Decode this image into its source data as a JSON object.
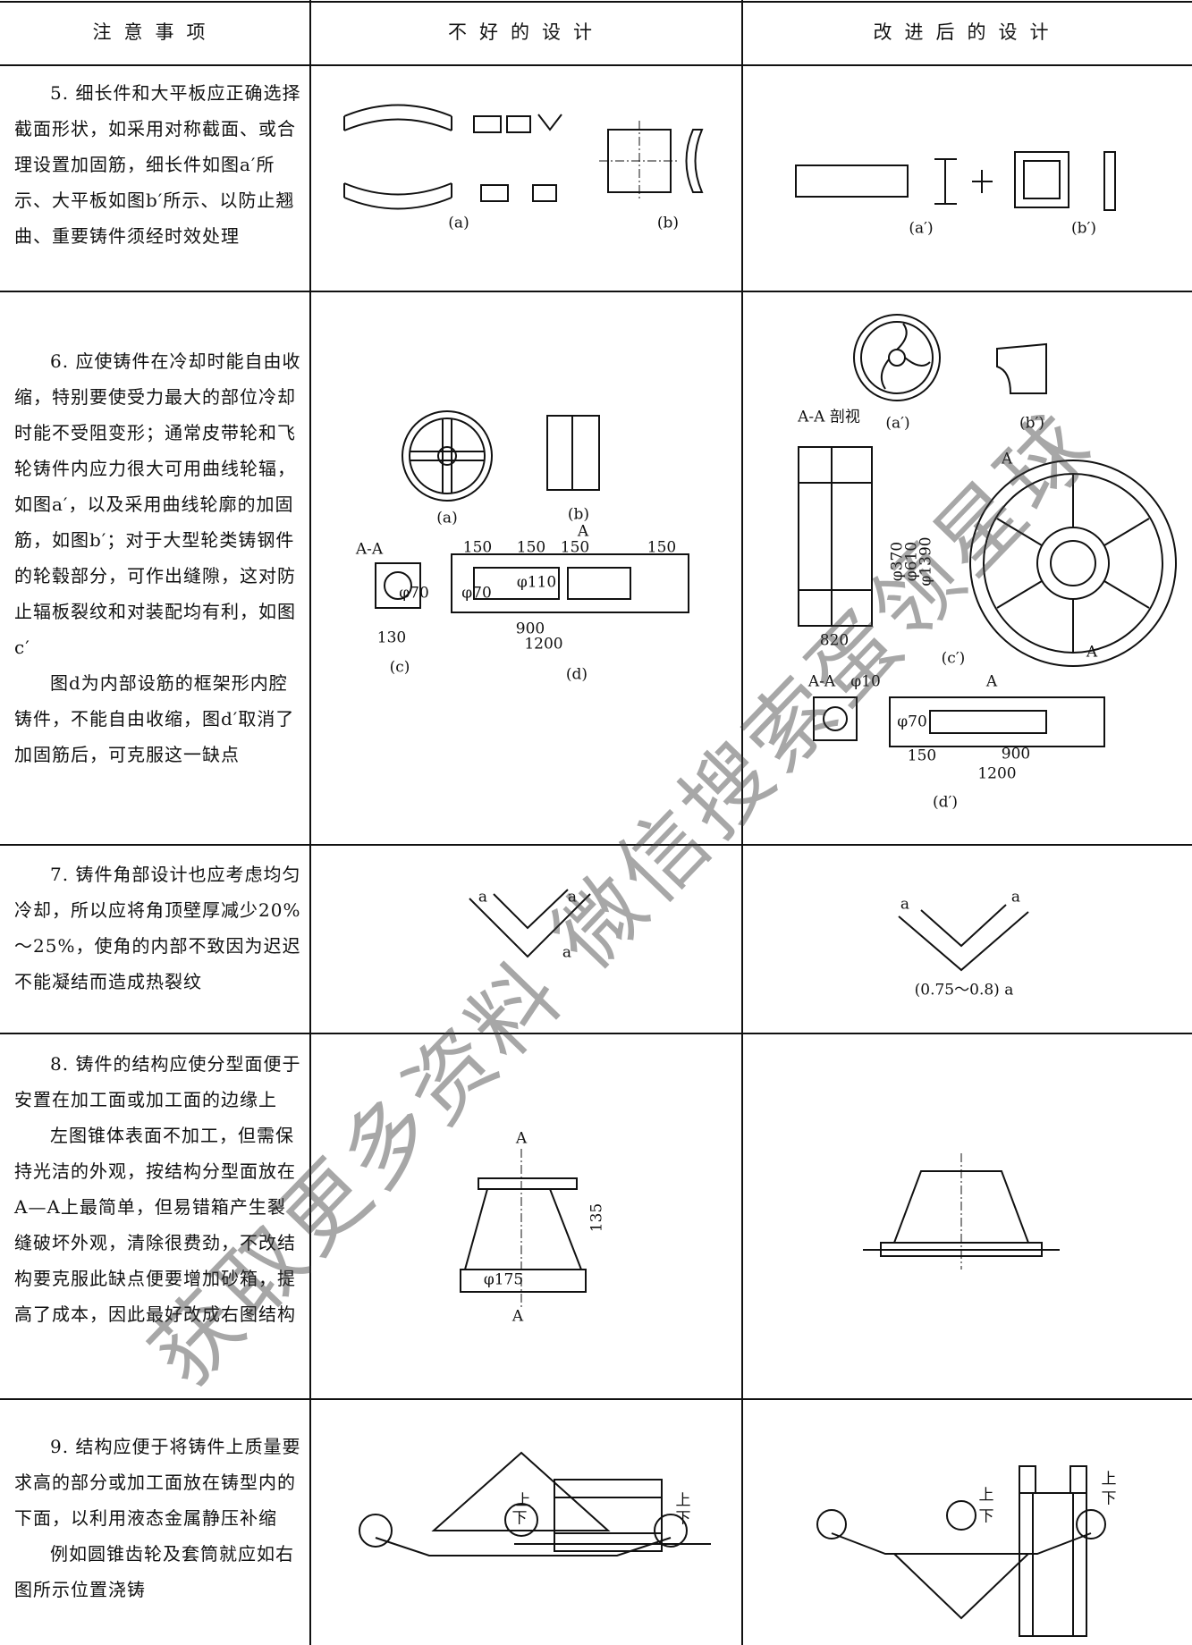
{
  "header": {
    "columns": [
      "注意事项",
      "不好的设计",
      "改进后的设计"
    ]
  },
  "rows": [
    {
      "note": [
        "5. 细长件和大平板应正确选择截面形状，如采用对称截面、或合理设置加固筋，细长件如图a′所示、大平板如图b′所示、以防止翘曲、重要铸件须经时效处理"
      ],
      "bad": [
        "(a)",
        "(b)"
      ],
      "good": [
        "(a′)",
        "(b′)"
      ]
    },
    {
      "note": [
        "6. 应使铸件在冷却时能自由收缩，特别要使受力最大的部位冷却时能不受阻变形；通常皮带轮和飞轮铸件内应力很大可用曲线轮辐，如图a′，以及采用曲线轮廓的加固筋，如图b′；对于大型轮类铸钢件的轮毂部分，可作出缝隙，这对防止辐板裂纹和对装配均有利，如图c′",
        "图d为内部设筋的框架形内腔铸件，不能自由收缩，图d′取消了加固筋后，可克服这一缺点"
      ],
      "bad": [
        "(a)",
        "(b)",
        "A-A",
        "150",
        "150",
        "150",
        "150",
        "A",
        "φ70",
        "φ70",
        "φ110",
        "900",
        "1200",
        "130",
        "(c)",
        "(d)"
      ],
      "good": [
        "(a′)",
        "(b′)",
        "A-A 剖视",
        "820",
        "φ370",
        "φ610",
        "φ1390",
        "(c′)",
        "A",
        "A",
        "A-A",
        "φ10",
        "A",
        "φ70",
        "150",
        "900",
        "1200",
        "(d′)"
      ]
    },
    {
      "note": [
        "7. 铸件角部设计也应考虑均匀冷却，所以应将角顶壁厚减少20%～25%，使角的内部不致因为迟迟不能凝结而造成热裂纹"
      ],
      "bad": [
        "a",
        "a",
        "a"
      ],
      "good": [
        "a",
        "a",
        "(0.75～0.8) a"
      ]
    },
    {
      "note": [
        "8. 铸件的结构应使分型面便于安置在加工面或加工面的边缘上",
        "左图锥体表面不加工，但需保持光洁的外观，按结构分型面放在A—A上最简单，但易错箱产生裂缝破坏外观，清除很费劲，不改结构要克服此缺点便要增加砂箱，提高了成本，因此最好改成右图结构"
      ],
      "bad": [
        "A",
        "A",
        "135",
        "φ175"
      ],
      "good": []
    },
    {
      "note": [
        "9. 结构应便于将铸件上质量要求高的部分或加工面放在铸型内的下面，以利用液态金属静压补缩",
        "例如圆锥齿轮及套筒就应如右图所示位置浇铸"
      ],
      "bad": [
        "上",
        "下",
        "上",
        "下"
      ],
      "good": [
        "上",
        "下",
        "上",
        "下"
      ]
    }
  ],
  "watermark": "获取更多资料 微信搜索蛋领星球"
}
